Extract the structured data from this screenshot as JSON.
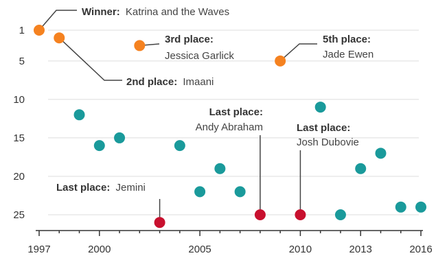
{
  "chart_data": {
    "type": "scatter",
    "title": "",
    "xlabel": "",
    "ylabel": "",
    "x_ticks": [
      1997,
      2000,
      2005,
      2010,
      2013,
      2016
    ],
    "y_ticks": [
      1,
      5,
      10,
      15,
      20,
      25
    ],
    "xlim": [
      1997,
      2016
    ],
    "ylim": [
      1,
      25
    ],
    "y_inverted": true,
    "grid": "horizontal",
    "colors": {
      "top_five": "#f58220",
      "last_place": "#c8102e",
      "other": "#1a9a9b"
    },
    "points": [
      {
        "x": 1997,
        "y": 1,
        "group": "top_five"
      },
      {
        "x": 1998,
        "y": 2,
        "group": "top_five"
      },
      {
        "x": 1999,
        "y": 12,
        "group": "other"
      },
      {
        "x": 2000,
        "y": 16,
        "group": "other"
      },
      {
        "x": 2001,
        "y": 15,
        "group": "other"
      },
      {
        "x": 2002,
        "y": 3,
        "group": "top_five"
      },
      {
        "x": 2003,
        "y": 26,
        "group": "last_place"
      },
      {
        "x": 2004,
        "y": 16,
        "group": "other"
      },
      {
        "x": 2005,
        "y": 22,
        "group": "other"
      },
      {
        "x": 2006,
        "y": 19,
        "group": "other"
      },
      {
        "x": 2007,
        "y": 22,
        "group": "other"
      },
      {
        "x": 2008,
        "y": 25,
        "group": "last_place"
      },
      {
        "x": 2009,
        "y": 5,
        "group": "top_five"
      },
      {
        "x": 2010,
        "y": 25,
        "group": "last_place"
      },
      {
        "x": 2011,
        "y": 11,
        "group": "other"
      },
      {
        "x": 2012,
        "y": 25,
        "group": "other"
      },
      {
        "x": 2013,
        "y": 19,
        "group": "other"
      },
      {
        "x": 2014,
        "y": 17,
        "group": "other"
      },
      {
        "x": 2015,
        "y": 24,
        "group": "other"
      },
      {
        "x": 2016,
        "y": 24,
        "group": "other"
      }
    ],
    "annotations": [
      {
        "bold": "Winner:",
        "text": "Katrina and the Waves"
      },
      {
        "bold": "2nd place:",
        "text": "Imaani"
      },
      {
        "bold": "3rd place:",
        "text": "Jessica Garlick"
      },
      {
        "bold": "5th place:",
        "text": "Jade Ewen"
      },
      {
        "bold": "Last place:",
        "text": "Jemini"
      },
      {
        "bold": "Last place:",
        "text": "Andy Abraham"
      },
      {
        "bold": "Last place:",
        "text": "Josh Dubovie"
      }
    ]
  }
}
